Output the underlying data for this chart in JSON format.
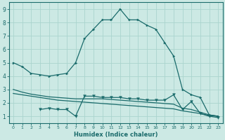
{
  "xlabel": "Humidex (Indice chaleur)",
  "xlim": [
    -0.5,
    23.5
  ],
  "ylim": [
    0.5,
    9.5
  ],
  "xticks": [
    0,
    1,
    2,
    3,
    4,
    5,
    6,
    7,
    8,
    9,
    10,
    11,
    12,
    13,
    14,
    15,
    16,
    17,
    18,
    19,
    20,
    21,
    22,
    23
  ],
  "yticks": [
    1,
    2,
    3,
    4,
    5,
    6,
    7,
    8,
    9
  ],
  "bg_color": "#cce9e4",
  "line_color": "#1a6b6b",
  "grid_color": "#aad4ce",
  "line1_x": [
    0,
    1,
    2,
    3,
    4,
    5,
    6,
    7,
    8,
    9,
    10,
    11,
    12,
    13,
    14,
    15,
    16,
    17,
    18,
    19,
    20,
    21,
    22,
    23
  ],
  "line1_y": [
    5.0,
    4.7,
    4.2,
    4.1,
    4.0,
    4.1,
    4.2,
    5.0,
    6.8,
    7.5,
    8.2,
    8.2,
    9.0,
    8.2,
    8.2,
    7.8,
    7.5,
    6.5,
    5.5,
    3.0,
    2.6,
    2.4,
    1.1,
    1.0
  ],
  "line2_x": [
    3,
    4,
    5,
    6,
    7,
    8,
    9,
    10,
    11,
    12,
    13,
    14,
    15,
    16,
    17,
    18,
    19,
    20,
    21,
    22,
    23
  ],
  "line2_y": [
    1.5,
    1.6,
    1.5,
    1.5,
    1.0,
    2.5,
    2.5,
    2.4,
    2.4,
    2.4,
    2.3,
    2.3,
    2.2,
    2.2,
    2.2,
    2.6,
    1.5,
    2.1,
    1.2,
    1.0,
    0.9
  ],
  "line3_x": [
    0,
    1,
    2,
    3,
    4,
    5,
    6,
    7,
    8,
    9,
    10,
    11,
    12,
    13,
    14,
    15,
    16,
    17,
    18,
    19,
    20,
    21,
    22,
    23
  ],
  "line3_y": [
    3.0,
    2.8,
    2.65,
    2.55,
    2.45,
    2.4,
    2.35,
    2.3,
    2.3,
    2.3,
    2.3,
    2.25,
    2.2,
    2.15,
    2.1,
    2.05,
    2.0,
    1.95,
    1.9,
    1.6,
    1.5,
    1.3,
    1.1,
    1.0
  ],
  "line4_x": [
    0,
    1,
    2,
    3,
    4,
    5,
    6,
    7,
    8,
    9,
    10,
    11,
    12,
    13,
    14,
    15,
    16,
    17,
    18,
    19,
    20,
    21,
    22,
    23
  ],
  "line4_y": [
    2.7,
    2.6,
    2.5,
    2.4,
    2.3,
    2.2,
    2.15,
    2.1,
    2.05,
    2.0,
    1.95,
    1.9,
    1.85,
    1.8,
    1.75,
    1.7,
    1.65,
    1.6,
    1.55,
    1.4,
    1.3,
    1.2,
    1.05,
    1.0
  ]
}
